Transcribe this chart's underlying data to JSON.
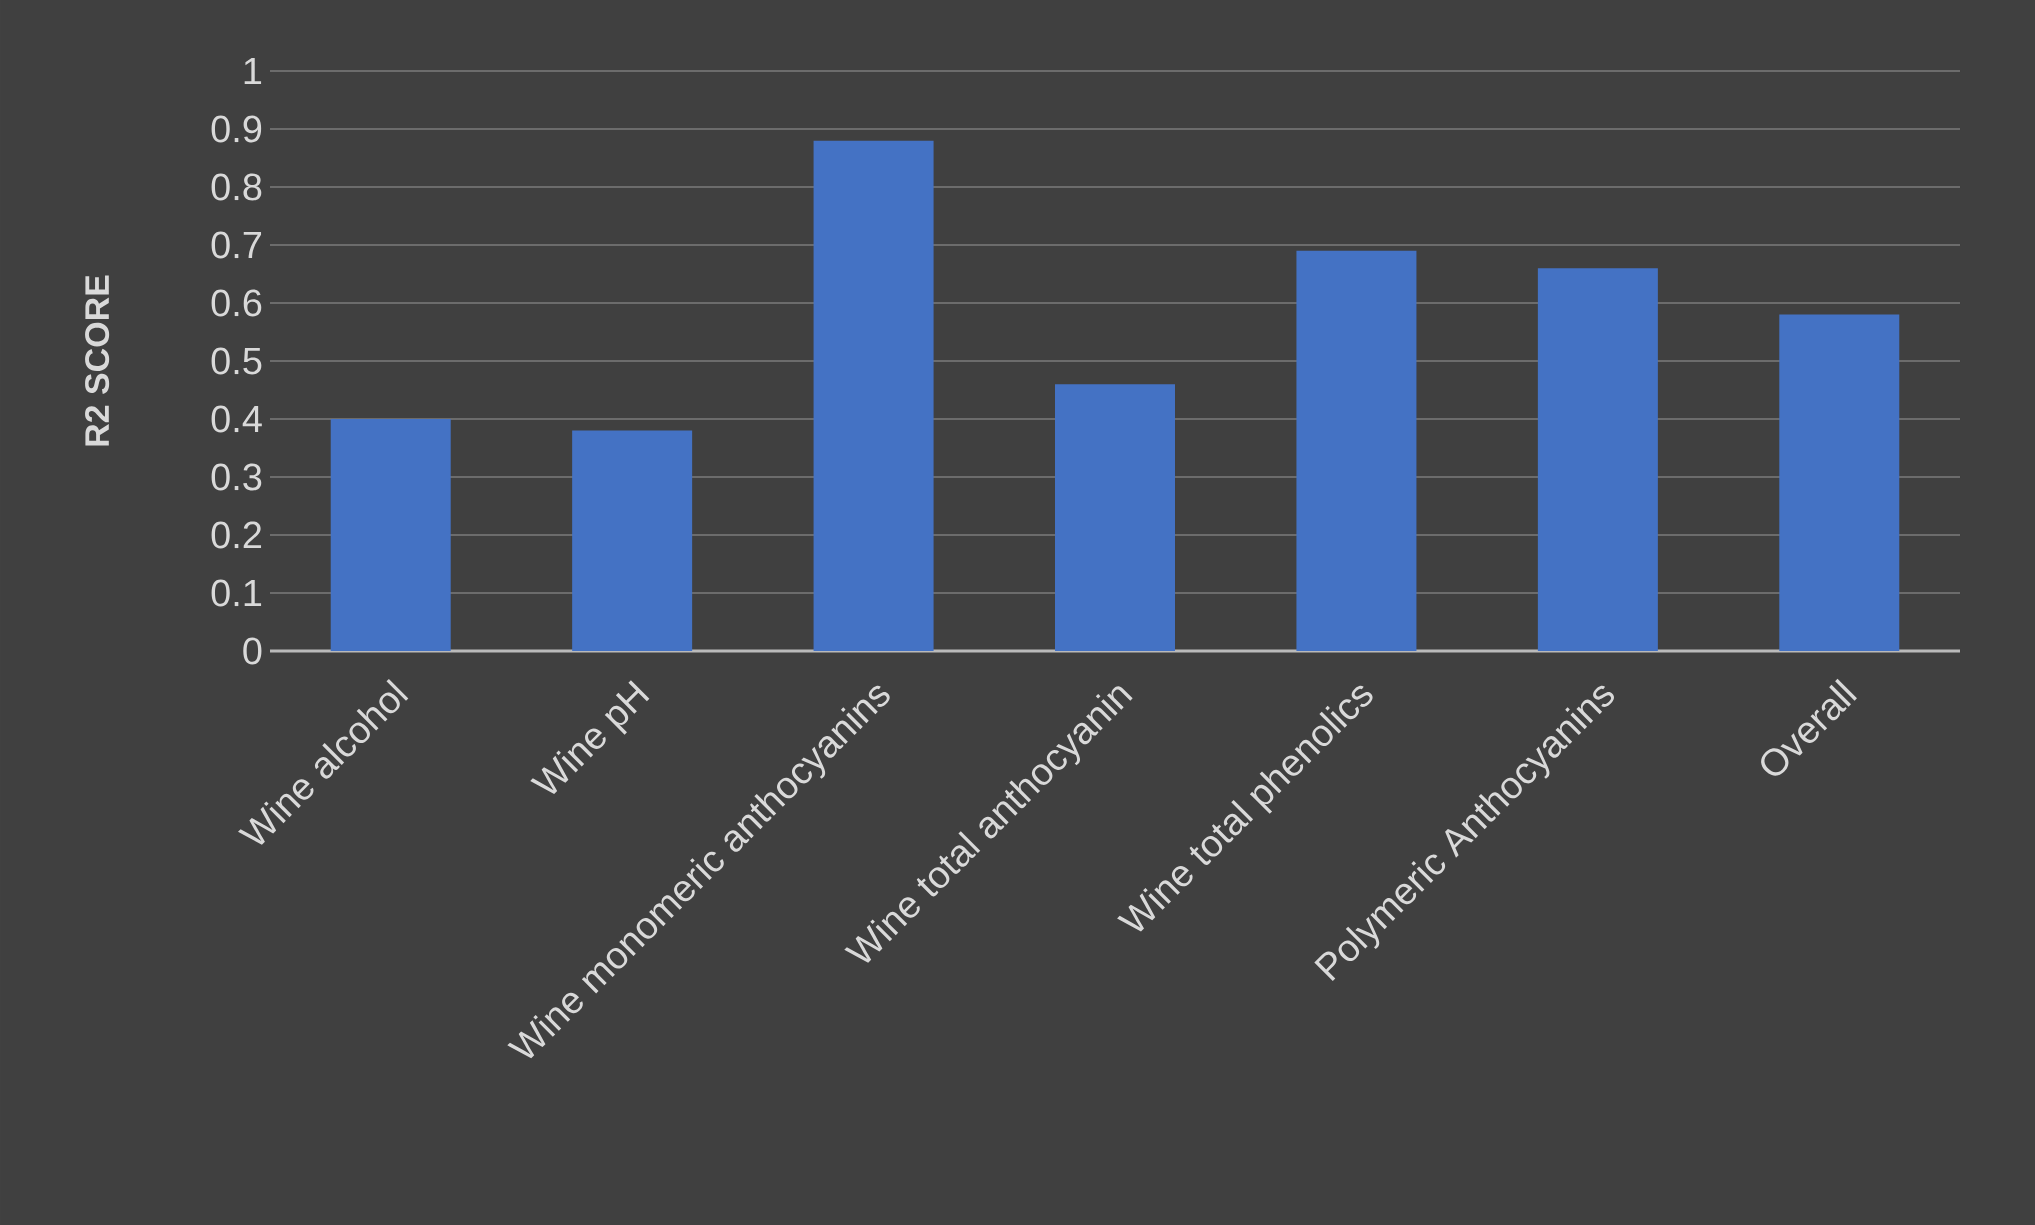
{
  "chart_data": {
    "type": "bar",
    "ylabel": "R2 SCORE",
    "categories": [
      "Wine alcohol",
      "Wine pH",
      "Wine monomeric anthocyanins",
      "Wine total anthocyanin",
      "Wine total phenolics",
      "Polymeric Anthocyanins",
      "Overall"
    ],
    "values": [
      0.4,
      0.38,
      0.88,
      0.46,
      0.69,
      0.66,
      0.58
    ],
    "color": "#4472c4",
    "ylim": [
      0,
      1
    ],
    "yticks": [
      0,
      0.1,
      0.2,
      0.3,
      0.4,
      0.5,
      0.6,
      0.7,
      0.8,
      0.9,
      1
    ],
    "grid": "y"
  }
}
